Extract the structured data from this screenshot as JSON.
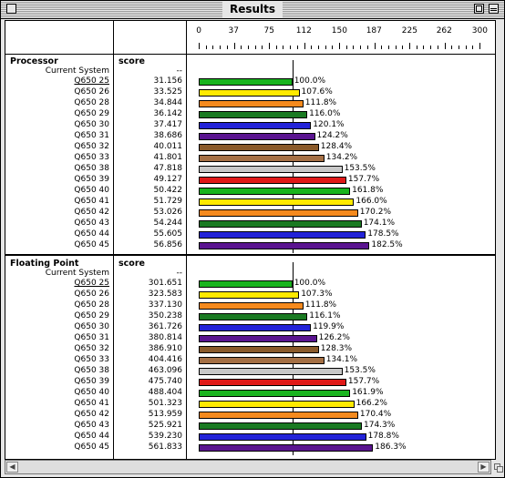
{
  "window": {
    "title": "Results"
  },
  "axis": {
    "min": 0,
    "max": 300,
    "labeled_ticks": [
      0,
      37,
      75,
      112,
      150,
      187,
      225,
      262,
      300
    ],
    "reference_value": 100
  },
  "sections": [
    {
      "title": "Processor",
      "score_header": "score",
      "reference": {
        "name": "Current System",
        "score": "--"
      },
      "rows": [
        {
          "name": "Q650 25",
          "score": "31.156",
          "pct": 100.0,
          "label": "100.0%",
          "color": "#19b41e",
          "link": true
        },
        {
          "name": "Q650 26",
          "score": "33.525",
          "pct": 107.6,
          "label": "107.6%",
          "color": "#ffea00",
          "link": false
        },
        {
          "name": "Q650 28",
          "score": "34.844",
          "pct": 111.8,
          "label": "111.8%",
          "color": "#f58a1e",
          "link": false
        },
        {
          "name": "Q650 29",
          "score": "36.142",
          "pct": 116.0,
          "label": "116.0%",
          "color": "#1a7a22",
          "link": false
        },
        {
          "name": "Q650 30",
          "score": "37.417",
          "pct": 120.1,
          "label": "120.1%",
          "color": "#2323d8",
          "link": false
        },
        {
          "name": "Q650 31",
          "score": "38.686",
          "pct": 124.2,
          "label": "124.2%",
          "color": "#5a1490",
          "link": false
        },
        {
          "name": "Q650 32",
          "score": "40.011",
          "pct": 128.4,
          "label": "128.4%",
          "color": "#8a5a2a",
          "link": false
        },
        {
          "name": "Q650 33",
          "score": "41.801",
          "pct": 134.2,
          "label": "134.2%",
          "color": "#a57045",
          "link": false
        },
        {
          "name": "Q650 38",
          "score": "47.818",
          "pct": 153.5,
          "label": "153.5%",
          "color": "#c8c8c8",
          "link": false
        },
        {
          "name": "Q650 39",
          "score": "49.127",
          "pct": 157.7,
          "label": "157.7%",
          "color": "#e01818",
          "link": false
        },
        {
          "name": "Q650 40",
          "score": "50.422",
          "pct": 161.8,
          "label": "161.8%",
          "color": "#19b41e",
          "link": false
        },
        {
          "name": "Q650 41",
          "score": "51.729",
          "pct": 166.0,
          "label": "166.0%",
          "color": "#ffea00",
          "link": false
        },
        {
          "name": "Q650 42",
          "score": "53.026",
          "pct": 170.2,
          "label": "170.2%",
          "color": "#f58a1e",
          "link": false
        },
        {
          "name": "Q650 43",
          "score": "54.244",
          "pct": 174.1,
          "label": "174.1%",
          "color": "#1a7a22",
          "link": false
        },
        {
          "name": "Q650 44",
          "score": "55.605",
          "pct": 178.5,
          "label": "178.5%",
          "color": "#2323d8",
          "link": false
        },
        {
          "name": "Q650 45",
          "score": "56.856",
          "pct": 182.5,
          "label": "182.5%",
          "color": "#5a1490",
          "link": false
        }
      ]
    },
    {
      "title": "Floating Point",
      "score_header": "score",
      "reference": {
        "name": "Current System",
        "score": "--"
      },
      "rows": [
        {
          "name": "Q650 25",
          "score": "301.651",
          "pct": 100.0,
          "label": "100.0%",
          "color": "#19b41e",
          "link": true
        },
        {
          "name": "Q650 26",
          "score": "323.583",
          "pct": 107.3,
          "label": "107.3%",
          "color": "#ffea00",
          "link": false
        },
        {
          "name": "Q650 28",
          "score": "337.130",
          "pct": 111.8,
          "label": "111.8%",
          "color": "#f58a1e",
          "link": false
        },
        {
          "name": "Q650 29",
          "score": "350.238",
          "pct": 116.1,
          "label": "116.1%",
          "color": "#1a7a22",
          "link": false
        },
        {
          "name": "Q650 30",
          "score": "361.726",
          "pct": 119.9,
          "label": "119.9%",
          "color": "#2323d8",
          "link": false
        },
        {
          "name": "Q650 31",
          "score": "380.814",
          "pct": 126.2,
          "label": "126.2%",
          "color": "#5a1490",
          "link": false
        },
        {
          "name": "Q650 32",
          "score": "386.910",
          "pct": 128.3,
          "label": "128.3%",
          "color": "#8a5a2a",
          "link": false
        },
        {
          "name": "Q650 33",
          "score": "404.416",
          "pct": 134.1,
          "label": "134.1%",
          "color": "#a57045",
          "link": false
        },
        {
          "name": "Q650 38",
          "score": "463.096",
          "pct": 153.5,
          "label": "153.5%",
          "color": "#c8c8c8",
          "link": false
        },
        {
          "name": "Q650 39",
          "score": "475.740",
          "pct": 157.7,
          "label": "157.7%",
          "color": "#e01818",
          "link": false
        },
        {
          "name": "Q650 40",
          "score": "488.404",
          "pct": 161.9,
          "label": "161.9%",
          "color": "#19b41e",
          "link": false
        },
        {
          "name": "Q650 41",
          "score": "501.323",
          "pct": 166.2,
          "label": "166.2%",
          "color": "#ffea00",
          "link": false
        },
        {
          "name": "Q650 42",
          "score": "513.959",
          "pct": 170.4,
          "label": "170.4%",
          "color": "#f58a1e",
          "link": false
        },
        {
          "name": "Q650 43",
          "score": "525.921",
          "pct": 174.3,
          "label": "174.3%",
          "color": "#1a7a22",
          "link": false
        },
        {
          "name": "Q650 44",
          "score": "539.230",
          "pct": 178.8,
          "label": "178.8%",
          "color": "#2323d8",
          "link": false
        },
        {
          "name": "Q650 45",
          "score": "561.833",
          "pct": 186.3,
          "label": "186.3%",
          "color": "#5a1490",
          "link": false
        }
      ]
    }
  ]
}
